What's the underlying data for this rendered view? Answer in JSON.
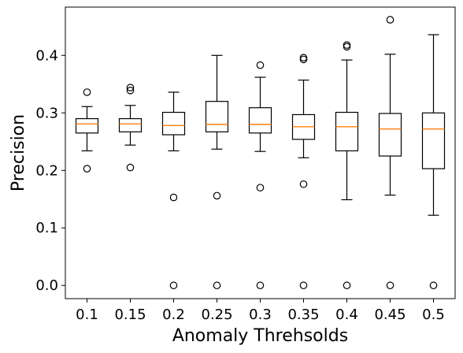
{
  "chart_data": {
    "type": "box",
    "title": "",
    "xlabel": "Anomaly Threhsolds",
    "ylabel": "Precision",
    "categories": [
      "0.1",
      "0.15",
      "0.2",
      "0.25",
      "0.3",
      "0.35",
      "0.4",
      "0.45",
      "0.5"
    ],
    "ylim": [
      -0.023,
      0.484
    ],
    "yticks": [
      0.0,
      0.1,
      0.2,
      0.3,
      0.4
    ],
    "ytick_labels": [
      "0.0",
      "0.1",
      "0.2",
      "0.3",
      "0.4"
    ],
    "grid": false,
    "legend": "none",
    "box_color": "#000000",
    "median_color": "#ff7f0e",
    "boxes": [
      {
        "whislo": 0.234,
        "q1": 0.265,
        "med": 0.281,
        "q3": 0.29,
        "whishi": 0.311,
        "fliers": [
          0.203,
          0.336
        ]
      },
      {
        "whislo": 0.244,
        "q1": 0.267,
        "med": 0.281,
        "q3": 0.29,
        "whishi": 0.313,
        "fliers": [
          0.205,
          0.339,
          0.344
        ]
      },
      {
        "whislo": 0.234,
        "q1": 0.262,
        "med": 0.278,
        "q3": 0.301,
        "whishi": 0.336,
        "fliers": [
          0.153,
          0.0
        ]
      },
      {
        "whislo": 0.237,
        "q1": 0.267,
        "med": 0.28,
        "q3": 0.32,
        "whishi": 0.4,
        "fliers": [
          0.156,
          0.0
        ]
      },
      {
        "whislo": 0.233,
        "q1": 0.265,
        "med": 0.28,
        "q3": 0.309,
        "whishi": 0.362,
        "fliers": [
          0.17,
          0.383,
          0.0
        ]
      },
      {
        "whislo": 0.222,
        "q1": 0.254,
        "med": 0.276,
        "q3": 0.297,
        "whishi": 0.357,
        "fliers": [
          0.176,
          0.393,
          0.396,
          0.0
        ]
      },
      {
        "whislo": 0.149,
        "q1": 0.234,
        "med": 0.276,
        "q3": 0.301,
        "whishi": 0.392,
        "fliers": [
          0.415,
          0.418,
          0.0
        ]
      },
      {
        "whislo": 0.157,
        "q1": 0.225,
        "med": 0.272,
        "q3": 0.299,
        "whishi": 0.402,
        "fliers": [
          0.462,
          0.0
        ]
      },
      {
        "whislo": 0.122,
        "q1": 0.203,
        "med": 0.272,
        "q3": 0.3,
        "whishi": 0.436,
        "fliers": [
          0.0
        ]
      }
    ]
  }
}
